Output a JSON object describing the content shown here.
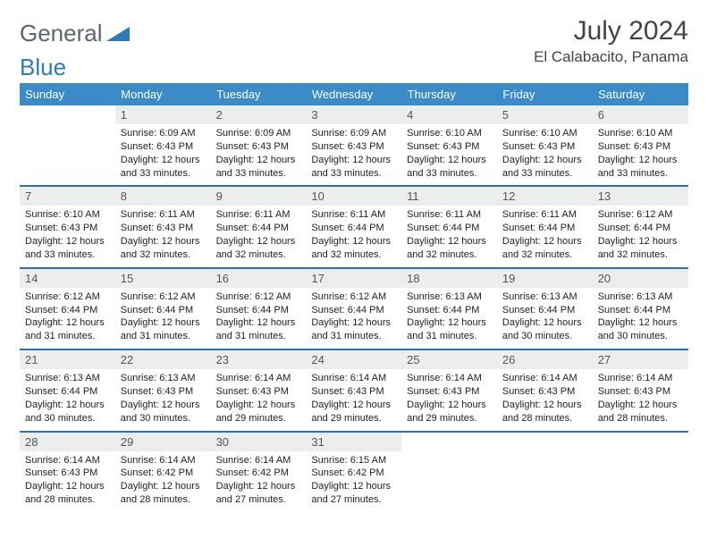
{
  "header": {
    "logo_text_1": "General",
    "logo_text_2": "Blue",
    "month_title": "July 2024",
    "location": "El Calabacito, Panama"
  },
  "styling": {
    "header_bg": "#3b8bc9",
    "header_text": "#ffffff",
    "daynum_bg": "#eceeee",
    "row_border": "#2b71a7",
    "body_fontsize": 11,
    "title_fontsize": 30,
    "logo_gray": "#5a6570",
    "logo_blue": "#2b7bbd"
  },
  "weekdays": [
    "Sunday",
    "Monday",
    "Tuesday",
    "Wednesday",
    "Thursday",
    "Friday",
    "Saturday"
  ],
  "weeks": [
    {
      "nums": [
        "",
        "1",
        "2",
        "3",
        "4",
        "5",
        "6"
      ],
      "cells": [
        null,
        {
          "sunrise": "6:09 AM",
          "sunset": "6:43 PM",
          "daylight": "12 hours and 33 minutes."
        },
        {
          "sunrise": "6:09 AM",
          "sunset": "6:43 PM",
          "daylight": "12 hours and 33 minutes."
        },
        {
          "sunrise": "6:09 AM",
          "sunset": "6:43 PM",
          "daylight": "12 hours and 33 minutes."
        },
        {
          "sunrise": "6:10 AM",
          "sunset": "6:43 PM",
          "daylight": "12 hours and 33 minutes."
        },
        {
          "sunrise": "6:10 AM",
          "sunset": "6:43 PM",
          "daylight": "12 hours and 33 minutes."
        },
        {
          "sunrise": "6:10 AM",
          "sunset": "6:43 PM",
          "daylight": "12 hours and 33 minutes."
        }
      ]
    },
    {
      "nums": [
        "7",
        "8",
        "9",
        "10",
        "11",
        "12",
        "13"
      ],
      "cells": [
        {
          "sunrise": "6:10 AM",
          "sunset": "6:43 PM",
          "daylight": "12 hours and 33 minutes."
        },
        {
          "sunrise": "6:11 AM",
          "sunset": "6:43 PM",
          "daylight": "12 hours and 32 minutes."
        },
        {
          "sunrise": "6:11 AM",
          "sunset": "6:44 PM",
          "daylight": "12 hours and 32 minutes."
        },
        {
          "sunrise": "6:11 AM",
          "sunset": "6:44 PM",
          "daylight": "12 hours and 32 minutes."
        },
        {
          "sunrise": "6:11 AM",
          "sunset": "6:44 PM",
          "daylight": "12 hours and 32 minutes."
        },
        {
          "sunrise": "6:11 AM",
          "sunset": "6:44 PM",
          "daylight": "12 hours and 32 minutes."
        },
        {
          "sunrise": "6:12 AM",
          "sunset": "6:44 PM",
          "daylight": "12 hours and 32 minutes."
        }
      ]
    },
    {
      "nums": [
        "14",
        "15",
        "16",
        "17",
        "18",
        "19",
        "20"
      ],
      "cells": [
        {
          "sunrise": "6:12 AM",
          "sunset": "6:44 PM",
          "daylight": "12 hours and 31 minutes."
        },
        {
          "sunrise": "6:12 AM",
          "sunset": "6:44 PM",
          "daylight": "12 hours and 31 minutes."
        },
        {
          "sunrise": "6:12 AM",
          "sunset": "6:44 PM",
          "daylight": "12 hours and 31 minutes."
        },
        {
          "sunrise": "6:12 AM",
          "sunset": "6:44 PM",
          "daylight": "12 hours and 31 minutes."
        },
        {
          "sunrise": "6:13 AM",
          "sunset": "6:44 PM",
          "daylight": "12 hours and 31 minutes."
        },
        {
          "sunrise": "6:13 AM",
          "sunset": "6:44 PM",
          "daylight": "12 hours and 30 minutes."
        },
        {
          "sunrise": "6:13 AM",
          "sunset": "6:44 PM",
          "daylight": "12 hours and 30 minutes."
        }
      ]
    },
    {
      "nums": [
        "21",
        "22",
        "23",
        "24",
        "25",
        "26",
        "27"
      ],
      "cells": [
        {
          "sunrise": "6:13 AM",
          "sunset": "6:44 PM",
          "daylight": "12 hours and 30 minutes."
        },
        {
          "sunrise": "6:13 AM",
          "sunset": "6:43 PM",
          "daylight": "12 hours and 30 minutes."
        },
        {
          "sunrise": "6:14 AM",
          "sunset": "6:43 PM",
          "daylight": "12 hours and 29 minutes."
        },
        {
          "sunrise": "6:14 AM",
          "sunset": "6:43 PM",
          "daylight": "12 hours and 29 minutes."
        },
        {
          "sunrise": "6:14 AM",
          "sunset": "6:43 PM",
          "daylight": "12 hours and 29 minutes."
        },
        {
          "sunrise": "6:14 AM",
          "sunset": "6:43 PM",
          "daylight": "12 hours and 28 minutes."
        },
        {
          "sunrise": "6:14 AM",
          "sunset": "6:43 PM",
          "daylight": "12 hours and 28 minutes."
        }
      ]
    },
    {
      "nums": [
        "28",
        "29",
        "30",
        "31",
        "",
        "",
        ""
      ],
      "cells": [
        {
          "sunrise": "6:14 AM",
          "sunset": "6:43 PM",
          "daylight": "12 hours and 28 minutes."
        },
        {
          "sunrise": "6:14 AM",
          "sunset": "6:42 PM",
          "daylight": "12 hours and 28 minutes."
        },
        {
          "sunrise": "6:14 AM",
          "sunset": "6:42 PM",
          "daylight": "12 hours and 27 minutes."
        },
        {
          "sunrise": "6:15 AM",
          "sunset": "6:42 PM",
          "daylight": "12 hours and 27 minutes."
        },
        null,
        null,
        null
      ]
    }
  ],
  "labels": {
    "sunrise": "Sunrise:",
    "sunset": "Sunset:",
    "daylight": "Daylight:"
  }
}
